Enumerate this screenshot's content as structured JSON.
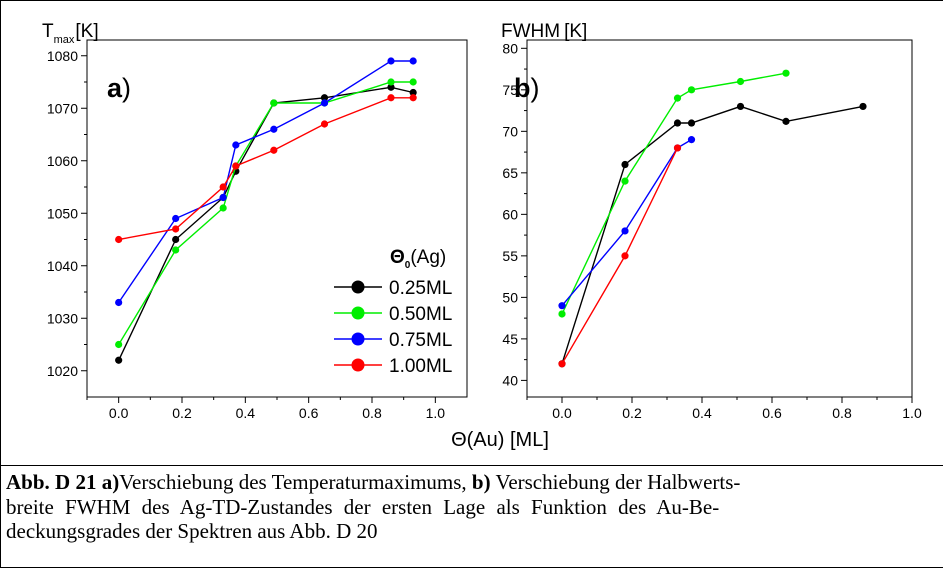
{
  "charts_axis_title": "Θ(Au) [ML]",
  "chart_data": [
    {
      "type": "line",
      "panel_label": "a",
      "ylabel_main": "T",
      "ylabel_sub": "max",
      "ylabel_unit": "[K]",
      "xlim": [
        -0.1,
        1.1
      ],
      "ylim": [
        1015,
        1083
      ],
      "xticks": [
        "0.0",
        "0.2",
        "0.4",
        "0.6",
        "0.8",
        "1.0"
      ],
      "yticks": [
        "1020",
        "1030",
        "1040",
        "1050",
        "1060",
        "1070",
        "1080"
      ],
      "legend_title": "Θ0(Ag)",
      "legend_position": "lower-right",
      "grid": false,
      "series": [
        {
          "name": "0.25ML",
          "color": "#000000",
          "x": [
            0.0,
            0.18,
            0.33,
            0.37,
            0.49,
            0.65,
            0.86,
            0.93
          ],
          "y": [
            1022,
            1045,
            1053,
            1058,
            1071,
            1072,
            1074,
            1073
          ]
        },
        {
          "name": "0.50ML",
          "color": "#00ee00",
          "x": [
            0.0,
            0.18,
            0.33,
            0.37,
            0.49,
            0.65,
            0.86,
            0.93
          ],
          "y": [
            1025,
            1043,
            1051,
            1059,
            1071,
            1071,
            1075,
            1075
          ]
        },
        {
          "name": "0.75ML",
          "color": "#0000ff",
          "x": [
            0.0,
            0.18,
            0.33,
            0.37,
            0.49,
            0.65,
            0.86,
            0.93
          ],
          "y": [
            1033,
            1049,
            1053,
            1063,
            1066,
            1071,
            1079,
            1079
          ]
        },
        {
          "name": "1.00ML",
          "color": "#ff0000",
          "x": [
            0.0,
            0.18,
            0.33,
            0.37,
            0.49,
            0.65,
            0.86,
            0.93
          ],
          "y": [
            1045,
            1047,
            1055,
            1059,
            1062,
            1067,
            1072,
            1072
          ]
        }
      ]
    },
    {
      "type": "line",
      "panel_label": "b",
      "ylabel_main": "FWHM",
      "ylabel_unit": "[K]",
      "xlim": [
        -0.1,
        1.0
      ],
      "ylim": [
        38,
        81
      ],
      "xticks": [
        "0.0",
        "0.2",
        "0.4",
        "0.6",
        "0.8",
        "1.0"
      ],
      "yticks": [
        "40",
        "45",
        "50",
        "55",
        "60",
        "65",
        "70",
        "75",
        "80"
      ],
      "grid": false,
      "series": [
        {
          "color": "#000000",
          "x": [
            0.0,
            0.18,
            0.33,
            0.37,
            0.51,
            0.64,
            0.86
          ],
          "y": [
            42,
            66,
            71,
            71,
            73,
            71.2,
            73
          ]
        },
        {
          "color": "#00ee00",
          "x": [
            0.0,
            0.18,
            0.33,
            0.37,
            0.51,
            0.64
          ],
          "y": [
            48,
            64,
            74,
            75,
            76,
            77
          ]
        },
        {
          "color": "#0000ff",
          "x": [
            0.0,
            0.18,
            0.33,
            0.37
          ],
          "y": [
            49,
            58,
            68,
            69
          ]
        },
        {
          "color": "#ff0000",
          "x": [
            0.0,
            0.18,
            0.33
          ],
          "y": [
            42,
            55,
            68
          ]
        }
      ]
    }
  ],
  "caption": {
    "label": "Abb. D 21 a)",
    "text1": "Verschiebung des Temperaturmaximums, ",
    "label_b": "b)",
    "text2": " Verschiebung der Halbwerts-",
    "line2": "breite FWHM des Ag-TD-Zustandes der ersten Lage als Funktion des Au-Be-",
    "line3": "deckungsgrades der Spektren aus Abb. D 20"
  }
}
